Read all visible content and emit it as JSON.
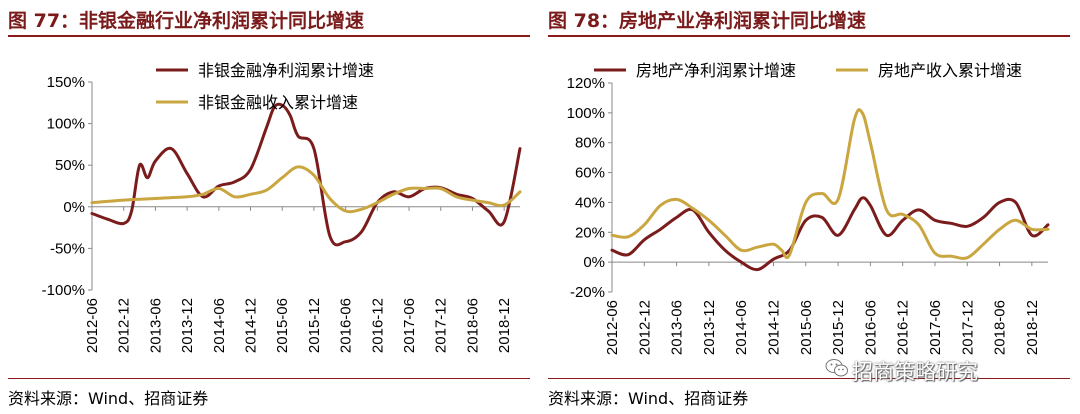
{
  "watermark": {
    "text": "招商策略研究",
    "icon": "wechat-icon"
  },
  "chart_data": [
    {
      "type": "line",
      "title": "图 77：非银金融行业净利润累计同比增速",
      "source": "资料来源：Wind、招商证券",
      "ylim": [
        -100,
        150
      ],
      "yticks": [
        -100,
        -50,
        0,
        50,
        100,
        150
      ],
      "ytick_labels": [
        "-100%",
        "-50%",
        "0%",
        "50%",
        "100%",
        "150%"
      ],
      "xlim": [
        0,
        27
      ],
      "xticks": [
        0,
        2,
        4,
        6,
        8,
        10,
        12,
        14,
        16,
        18,
        20,
        22,
        24,
        26
      ],
      "xtick_labels": [
        "2012-06",
        "2012-12",
        "2013-06",
        "2013-12",
        "2014-06",
        "2014-12",
        "2015-06",
        "2015-12",
        "2016-06",
        "2016-12",
        "2017-06",
        "2017-12",
        "2018-06",
        "2018-12"
      ],
      "grid": false,
      "legend": "top",
      "series": [
        {
          "name": "非银金融净利润累计增速",
          "color": "#7b1c1c",
          "x": [
            0,
            1,
            2,
            2.5,
            3,
            3.5,
            4,
            5,
            6,
            7,
            8,
            9,
            10,
            11,
            11.5,
            12,
            12.5,
            13,
            14,
            15,
            16,
            17,
            18,
            19,
            20,
            21,
            22,
            23,
            24,
            25,
            26,
            27
          ],
          "y": [
            -8,
            -15,
            -20,
            -5,
            50,
            35,
            55,
            70,
            40,
            12,
            25,
            30,
            45,
            95,
            120,
            122,
            110,
            85,
            70,
            -35,
            -42,
            -30,
            5,
            18,
            12,
            22,
            23,
            15,
            10,
            -5,
            -18,
            70
          ]
        },
        {
          "name": "非银金融收入累计增速",
          "color": "#c9a640",
          "x": [
            0,
            2,
            4,
            6,
            7,
            8,
            9,
            10,
            11,
            12,
            13,
            14,
            15,
            16,
            17,
            18,
            19,
            20,
            21,
            22,
            23,
            24,
            25,
            26,
            27
          ],
          "y": [
            5,
            8,
            10,
            12,
            15,
            22,
            12,
            15,
            20,
            35,
            48,
            38,
            10,
            -5,
            -3,
            5,
            15,
            22,
            22,
            22,
            12,
            8,
            5,
            2,
            18
          ]
        }
      ]
    },
    {
      "type": "line",
      "title": "图 78：房地产业净利润累计同比增速",
      "source": "资料来源：Wind、招商证券",
      "ylim": [
        -20,
        120
      ],
      "yticks": [
        -20,
        0,
        20,
        40,
        60,
        80,
        100,
        120
      ],
      "ytick_labels": [
        "-20%",
        "0%",
        "20%",
        "40%",
        "60%",
        "80%",
        "100%",
        "120%"
      ],
      "xlim": [
        0,
        27
      ],
      "xticks": [
        0,
        2,
        4,
        6,
        8,
        10,
        12,
        14,
        16,
        18,
        20,
        22,
        24,
        26
      ],
      "xtick_labels": [
        "2012-06",
        "2012-12",
        "2013-06",
        "2013-12",
        "2014-06",
        "2014-12",
        "2015-06",
        "2015-12",
        "2016-06",
        "2016-12",
        "2017-06",
        "2017-12",
        "2018-06",
        "2018-12"
      ],
      "grid": false,
      "legend": "top",
      "series": [
        {
          "name": "房地产净利润累计增速",
          "color": "#7b1c1c",
          "x": [
            0,
            1,
            2,
            3,
            4,
            5,
            6,
            7,
            8,
            9,
            10,
            11,
            12,
            13,
            14,
            15,
            15.5,
            16,
            17,
            18,
            19,
            20,
            21,
            22,
            23,
            24,
            25,
            26,
            27
          ],
          "y": [
            8,
            5,
            15,
            22,
            30,
            35,
            20,
            8,
            0,
            -5,
            2,
            8,
            28,
            30,
            18,
            35,
            43,
            38,
            18,
            28,
            35,
            28,
            26,
            24,
            30,
            40,
            40,
            18,
            25
          ]
        },
        {
          "name": "房地产收入累计增速",
          "color": "#c9a640",
          "x": [
            0,
            1,
            2,
            3,
            4,
            5,
            6,
            7,
            8,
            9,
            10,
            10.5,
            11,
            12,
            13,
            14,
            15,
            15.5,
            16,
            17,
            18,
            19,
            20,
            21,
            22,
            23,
            24,
            25,
            26,
            27
          ],
          "y": [
            18,
            17,
            25,
            38,
            42,
            36,
            28,
            18,
            8,
            10,
            12,
            8,
            5,
            40,
            46,
            42,
            95,
            100,
            80,
            35,
            32,
            25,
            6,
            4,
            3,
            12,
            22,
            28,
            22,
            22
          ]
        }
      ]
    }
  ]
}
